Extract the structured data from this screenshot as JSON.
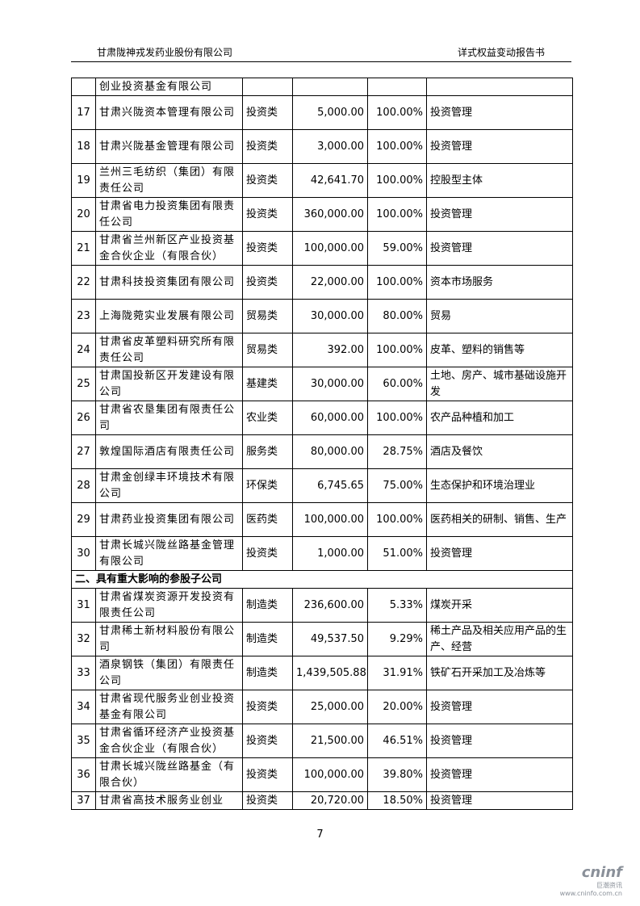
{
  "header": {
    "left": "甘肃陇神戎发药业股份有限公司",
    "right": "详式权益变动报告书"
  },
  "table": {
    "continued": "创业投资基金有限公司",
    "group1_rows": [
      [
        "17",
        "甘肃兴陇资本管理有限公司",
        "投资类",
        "5,000.00",
        "100.00%",
        "投资管理"
      ],
      [
        "18",
        "甘肃兴陇基金管理有限公司",
        "投资类",
        "3,000.00",
        "100.00%",
        "投资管理"
      ],
      [
        "19",
        "兰州三毛纺织（集团）有限责任公司",
        "投资类",
        "42,641.70",
        "100.00%",
        "控股型主体"
      ],
      [
        "20",
        "甘肃省电力投资集团有限责任公司",
        "投资类",
        "360,000.00",
        "100.00%",
        "投资管理"
      ],
      [
        "21",
        "甘肃省兰州新区产业投资基金合伙企业（有限合伙）",
        "投资类",
        "100,000.00",
        "59.00%",
        "投资管理"
      ],
      [
        "22",
        "甘肃科技投资集团有限公司",
        "投资类",
        "22,000.00",
        "100.00%",
        "资本市场服务"
      ],
      [
        "23",
        "上海陇菀实业发展有限公司",
        "贸易类",
        "30,000.00",
        "80.00%",
        "贸易"
      ],
      [
        "24",
        "甘肃省皮革塑料研究所有限责任公司",
        "贸易类",
        "392.00",
        "100.00%",
        "皮革、塑料的销售等"
      ],
      [
        "25",
        "甘肃国投新区开发建设有限公司",
        "基建类",
        "30,000.00",
        "60.00%",
        "土地、房产、城市基础设施开发"
      ],
      [
        "26",
        "甘肃省农垦集团有限责任公司",
        "农业类",
        "60,000.00",
        "100.00%",
        "农产品种植和加工"
      ],
      [
        "27",
        "敦煌国际酒店有限责任公司",
        "服务类",
        "80,000.00",
        "28.75%",
        "酒店及餐饮"
      ],
      [
        "28",
        "甘肃金创绿丰环境技术有限公司",
        "环保类",
        "6,745.65",
        "75.00%",
        "生态保护和环境治理业"
      ],
      [
        "29",
        "甘肃药业投资集团有限公司",
        "医药类",
        "100,000.00",
        "100.00%",
        "医药相关的研制、销售、生产"
      ],
      [
        "30",
        "甘肃长城兴陇丝路基金管理有限公司",
        "投资类",
        "1,000.00",
        "51.00%",
        "投资管理"
      ]
    ],
    "group2_title": "二、具有重大影响的参股子公司",
    "group2_rows": [
      [
        "31",
        "甘肃省煤炭资源开发投资有限责任公司",
        "制造类",
        "236,600.00",
        "5.33%",
        "煤炭开采"
      ],
      [
        "32",
        "甘肃稀土新材料股份有限公司",
        "制造类",
        "49,537.50",
        "9.29%",
        "稀土产品及相关应用产品的生产、经营"
      ],
      [
        "33",
        "酒泉钢铁（集团）有限责任公司",
        "制造类",
        "1,439,505.88",
        "31.91%",
        "铁矿石开采加工及冶炼等"
      ],
      [
        "34",
        "甘肃省现代服务业创业投资基金有限公司",
        "投资类",
        "25,000.00",
        "20.00%",
        "投资管理"
      ],
      [
        "35",
        "甘肃省循环经济产业投资基金合伙企业（有限合伙）",
        "投资类",
        "21,500.00",
        "46.51%",
        "投资管理"
      ],
      [
        "36",
        "甘肃长城兴陇丝路基金（有限合伙）",
        "投资类",
        "100,000.00",
        "39.80%",
        "投资管理"
      ],
      [
        "37",
        "甘肃省高技术服务业创业",
        "投资类",
        "20,720.00",
        "18.50%",
        "投资管理"
      ]
    ]
  },
  "footer": {
    "page_number": "7"
  },
  "watermark": {
    "logo": "cninf",
    "name": "巨潮资讯",
    "url": "www.cninfo.com.cn"
  }
}
